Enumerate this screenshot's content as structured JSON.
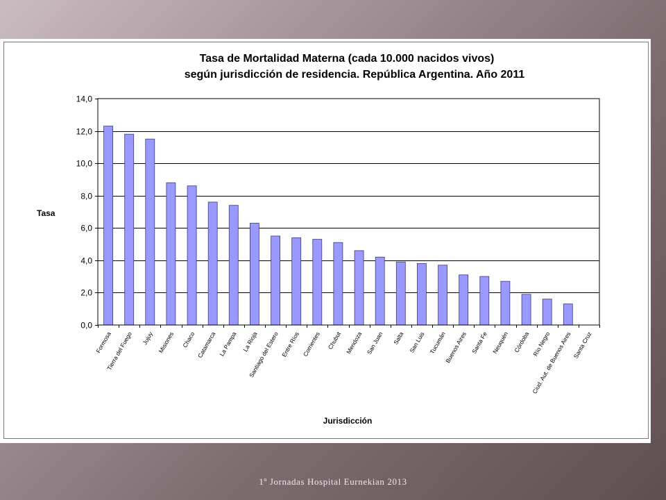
{
  "footer": {
    "text": "1º Jornadas Hospital Eurnekian 2013"
  },
  "chart_data": {
    "type": "bar",
    "title": "Tasa de Mortalidad Materna (cada 10.000 nacidos vivos)",
    "subtitle": "según jurisdicción de residencia. República Argentina. Año 2011",
    "xlabel": "Jurisdicción",
    "ylabel": "Tasa",
    "ylim": [
      0,
      14
    ],
    "yticks": [
      0,
      2,
      4,
      6,
      8,
      10,
      12,
      14
    ],
    "ytick_labels": [
      "0,0",
      "2,0",
      "4,0",
      "6,0",
      "8,0",
      "10,0",
      "12,0",
      "14,0"
    ],
    "grid": "horizontal",
    "legend": "none",
    "bar_color": "#9999ff",
    "bar_stroke": "#3a3a7a",
    "categories": [
      "Formosa",
      "Tierra del Fuego",
      "Jujuy",
      "Misiones",
      "Chaco",
      "Catamarca",
      "La Pampa",
      "La Rioja",
      "Santiago del Estero",
      "Entre Ríos",
      "Corrientes",
      "Chubut",
      "Mendoza",
      "San Juan",
      "Salta",
      "San Luis",
      "Tucumán",
      "Buenos Aires",
      "Santa Fe",
      "Neuquén",
      "Córdoba",
      "Río Negro",
      "Ciud. Aut. de Buenos Aires",
      "Santa Cruz"
    ],
    "values": [
      12.3,
      11.8,
      11.5,
      8.8,
      8.6,
      7.6,
      7.4,
      6.3,
      5.5,
      5.4,
      5.3,
      5.1,
      4.6,
      4.2,
      3.9,
      3.8,
      3.7,
      3.1,
      3.0,
      2.7,
      1.9,
      1.6,
      1.3,
      0.0
    ]
  }
}
